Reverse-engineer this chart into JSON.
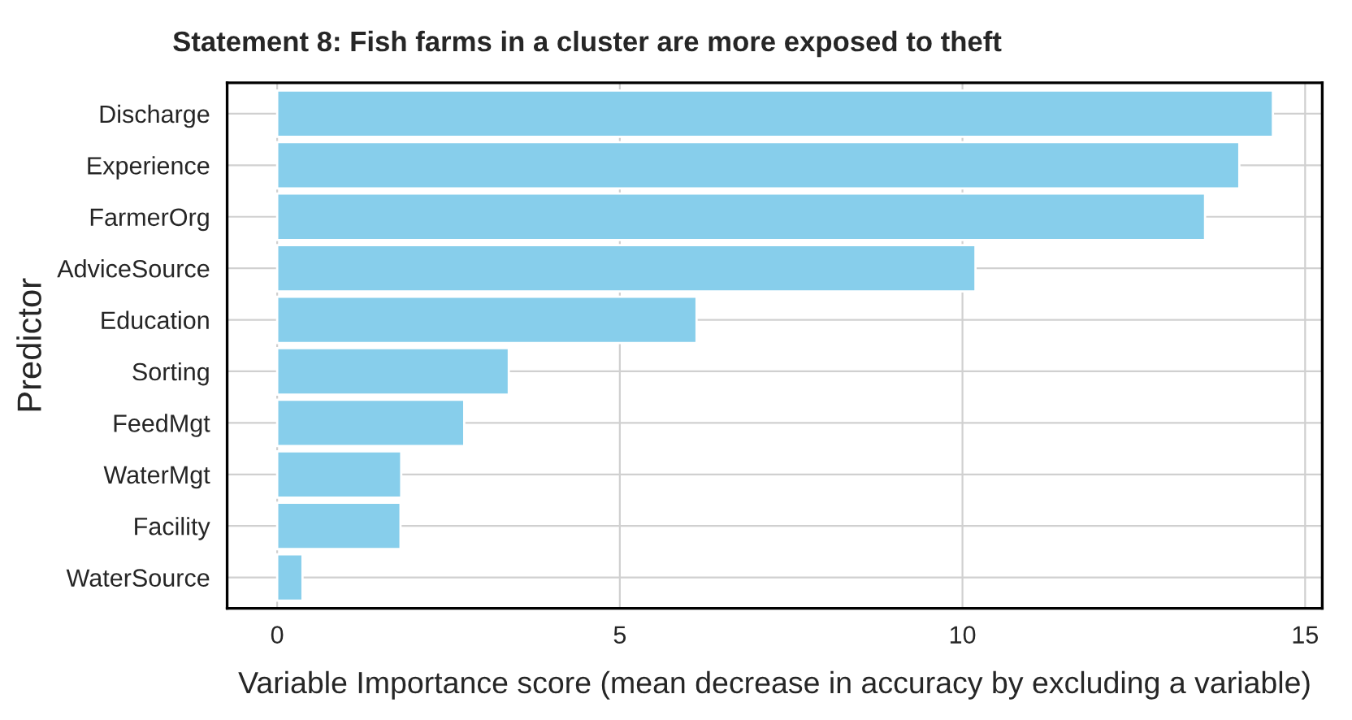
{
  "chart_data": {
    "type": "bar",
    "orientation": "horizontal",
    "title": "Statement 8: Fish farms in a cluster are more exposed to theft",
    "xlabel": "Variable Importance score (mean decrease in accuracy by excluding a variable)",
    "ylabel": "Predictor",
    "categories": [
      "Discharge",
      "Experience",
      "FarmerOrg",
      "AdviceSource",
      "Education",
      "Sorting",
      "FeedMgt",
      "WaterMgt",
      "Facility",
      "WaterSource"
    ],
    "values": [
      14.53,
      14.04,
      13.54,
      10.19,
      6.12,
      3.38,
      2.73,
      1.81,
      1.8,
      0.37
    ],
    "color": "#87ceeb",
    "xlim": [
      -0.73,
      15.25
    ],
    "xticks": [
      0,
      5,
      10,
      15
    ],
    "grid": true
  }
}
